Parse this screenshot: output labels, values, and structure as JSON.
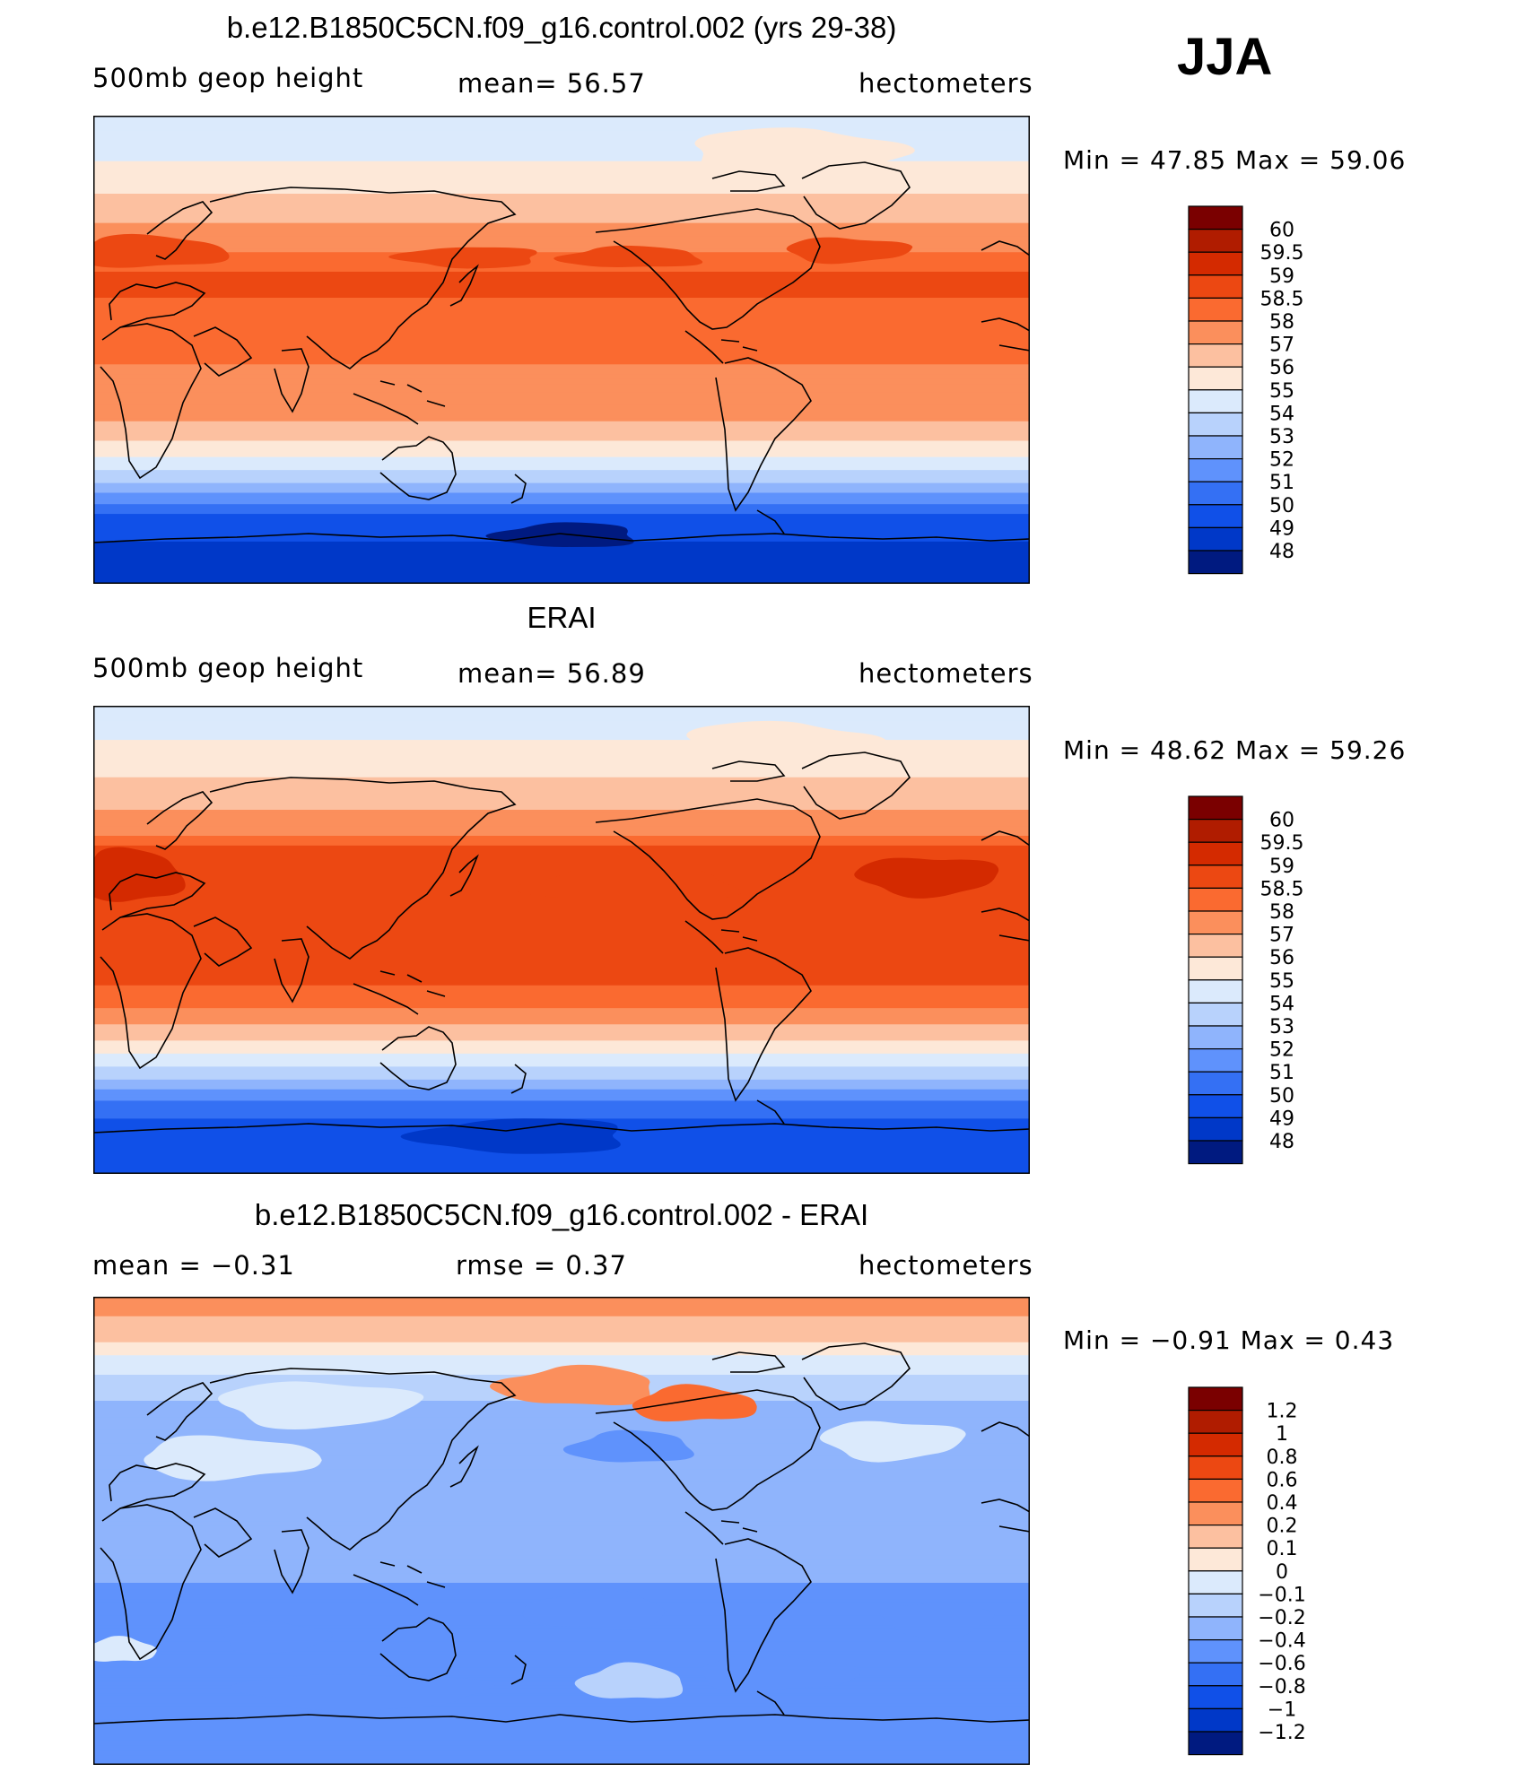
{
  "season": "JJA",
  "panels": [
    {
      "title": "b.e12.B1850C5CN.f09_g16.control.002 (yrs 29-38)",
      "left_label": "500mb geop height",
      "center_label": "mean=   56.57",
      "units": "hectometers",
      "min_max": "Min =   47.85 Max =   59.06"
    },
    {
      "title": "ERAI",
      "left_label": "500mb geop height",
      "center_label": "mean=   56.89",
      "units": "hectometers",
      "min_max": "Min =   48.62 Max =   59.26"
    },
    {
      "title": "b.e12.B1850C5CN.f09_g16.control.002 - ERAI",
      "left_label": "mean =   −0.31",
      "center_label": "rmse =     0.37",
      "units": "hectometers",
      "min_max": "Min =   −0.91  Max =     0.43"
    }
  ],
  "colorbars": {
    "height": {
      "labels": [
        "60",
        "59.5",
        "59",
        "58.5",
        "58",
        "57",
        "56",
        "55",
        "54",
        "53",
        "52",
        "51",
        "50",
        "49",
        "48"
      ],
      "colors": [
        "#7a0000",
        "#b01c00",
        "#d42a00",
        "#ec4812",
        "#fa6a30",
        "#fb8f5c",
        "#fcc0a0",
        "#fde8d8",
        "#dbeafc",
        "#b8d2fc",
        "#8fb4fc",
        "#5f92fc",
        "#3470f4",
        "#1050e8",
        "#0038c8",
        "#001a80"
      ]
    },
    "diff": {
      "labels": [
        "1.2",
        "1",
        "0.8",
        "0.6",
        "0.4",
        "0.2",
        "0.1",
        "0",
        "−0.1",
        "−0.2",
        "−0.4",
        "−0.6",
        "−0.8",
        "−1",
        "−1.2"
      ],
      "colors": [
        "#7a0000",
        "#b01c00",
        "#d42a00",
        "#ec4812",
        "#fa6a30",
        "#fb8f5c",
        "#fcc0a0",
        "#fde8d8",
        "#dbeafc",
        "#b8d2fc",
        "#8fb4fc",
        "#5f92fc",
        "#3470f4",
        "#1050e8",
        "#0038c8",
        "#001a80"
      ]
    }
  },
  "chart_data": [
    {
      "type": "heatmap",
      "title": "b.e12.B1850C5CN.f09_g16.control.002 (yrs 29-38)",
      "variable": "500mb geop height",
      "units": "hectometers",
      "mean": 56.57,
      "min": 47.85,
      "max": 59.06,
      "zonal_profile": {
        "lat": [
          90,
          75,
          65,
          55,
          45,
          35,
          25,
          15,
          0,
          -15,
          -25,
          -35,
          -45,
          -55,
          -60,
          -65,
          -75,
          -90
        ],
        "value": [
          54.2,
          54.8,
          55.6,
          56.4,
          57.3,
          58.3,
          58.7,
          58.3,
          58.1,
          57.8,
          57.3,
          56.1,
          54.4,
          52.0,
          50.8,
          49.6,
          48.9,
          48.4
        ]
      },
      "contour_levels": [
        48,
        49,
        50,
        51,
        52,
        53,
        54,
        55,
        56,
        57,
        58,
        58.5,
        59,
        59.5,
        60
      ]
    },
    {
      "type": "heatmap",
      "title": "ERAI",
      "variable": "500mb geop height",
      "units": "hectometers",
      "mean": 56.89,
      "min": 48.62,
      "max": 59.26,
      "zonal_profile": {
        "lat": [
          90,
          75,
          65,
          55,
          45,
          35,
          25,
          15,
          0,
          -15,
          -25,
          -35,
          -45,
          -55,
          -60,
          -65,
          -75,
          -90
        ],
        "value": [
          54.4,
          55.1,
          55.8,
          56.6,
          57.5,
          58.6,
          58.9,
          58.8,
          58.7,
          58.6,
          58.1,
          56.6,
          54.8,
          52.6,
          51.4,
          50.2,
          49.6,
          49.4
        ]
      },
      "contour_levels": [
        48,
        49,
        50,
        51,
        52,
        53,
        54,
        55,
        56,
        57,
        58,
        58.5,
        59,
        59.5,
        60
      ]
    },
    {
      "type": "heatmap",
      "title": "b.e12.B1850C5CN.f09_g16.control.002 - ERAI",
      "units": "hectometers",
      "mean": -0.31,
      "rmse": 0.37,
      "min": -0.91,
      "max": 0.43,
      "zonal_profile": {
        "lat": [
          90,
          75,
          65,
          55,
          45,
          35,
          25,
          15,
          0,
          -15,
          -25,
          -35,
          -45,
          -55,
          -60,
          -65,
          -75,
          -90
        ],
        "value": [
          0.25,
          0.15,
          -0.05,
          -0.15,
          -0.25,
          -0.2,
          -0.3,
          -0.35,
          -0.35,
          -0.35,
          -0.45,
          -0.4,
          -0.55,
          -0.5,
          -0.45,
          -0.5,
          -0.55,
          -0.6
        ]
      },
      "contour_levels": [
        -1.2,
        -1,
        -0.8,
        -0.6,
        -0.4,
        -0.2,
        -0.1,
        0,
        0.1,
        0.2,
        0.4,
        0.6,
        0.8,
        1,
        1.2
      ]
    }
  ]
}
